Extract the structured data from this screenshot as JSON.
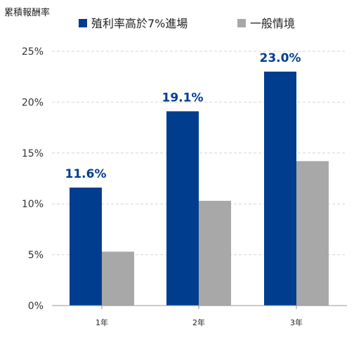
{
  "chart_data": {
    "type": "bar",
    "ylabel": "累積報酬率",
    "categories": [
      "1年",
      "2年",
      "3年"
    ],
    "series": [
      {
        "name": "殖利率高於7%進場",
        "values": [
          11.6,
          19.1,
          23.0
        ],
        "data_labels": [
          "11.6%",
          "19.1%",
          "23.0%"
        ],
        "color": "#003d8f"
      },
      {
        "name": "一般情境",
        "values": [
          5.3,
          10.3,
          14.2
        ],
        "color": "#a8a8a8"
      }
    ],
    "ylim": [
      0,
      25
    ],
    "yticks": [
      0,
      5,
      10,
      15,
      20,
      25
    ],
    "ytick_labels": [
      "0%",
      "5%",
      "10%",
      "15%",
      "20%",
      "25%"
    ],
    "grid": true,
    "legend_position": "top",
    "label_color": "#003d8f"
  }
}
